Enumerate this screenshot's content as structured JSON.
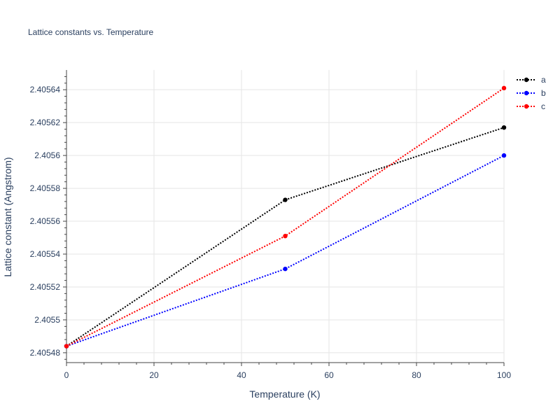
{
  "chart_data": {
    "type": "line",
    "title": "Lattice constants vs. Temperature",
    "xlabel": "Temperature (K)",
    "ylabel": "Lattice constant (Angstrom)",
    "x": [
      0,
      50,
      100
    ],
    "xlim": [
      0,
      100
    ],
    "ylim": [
      2.405474,
      2.405652
    ],
    "x_ticks": [
      0,
      20,
      40,
      60,
      80,
      100
    ],
    "x_tick_labels": [
      "0",
      "20",
      "40",
      "60",
      "80",
      "100"
    ],
    "y_ticks": [
      2.40548,
      2.4055,
      2.40552,
      2.40554,
      2.40556,
      2.40558,
      2.4056,
      2.40562,
      2.40564
    ],
    "y_tick_labels": [
      "2.40548",
      "2.4055",
      "2.40552",
      "2.40554",
      "2.40556",
      "2.40558",
      "2.4056",
      "2.40562",
      "2.40564"
    ],
    "grid": true,
    "legend_position": "top-right",
    "series": [
      {
        "name": "a",
        "color": "#000000",
        "values": [
          2.405484,
          2.405573,
          2.405617
        ]
      },
      {
        "name": "b",
        "color": "#0000ff",
        "values": [
          2.405484,
          2.405531,
          2.4056
        ]
      },
      {
        "name": "c",
        "color": "#ff0000",
        "values": [
          2.405484,
          2.405551,
          2.405641
        ]
      }
    ]
  }
}
